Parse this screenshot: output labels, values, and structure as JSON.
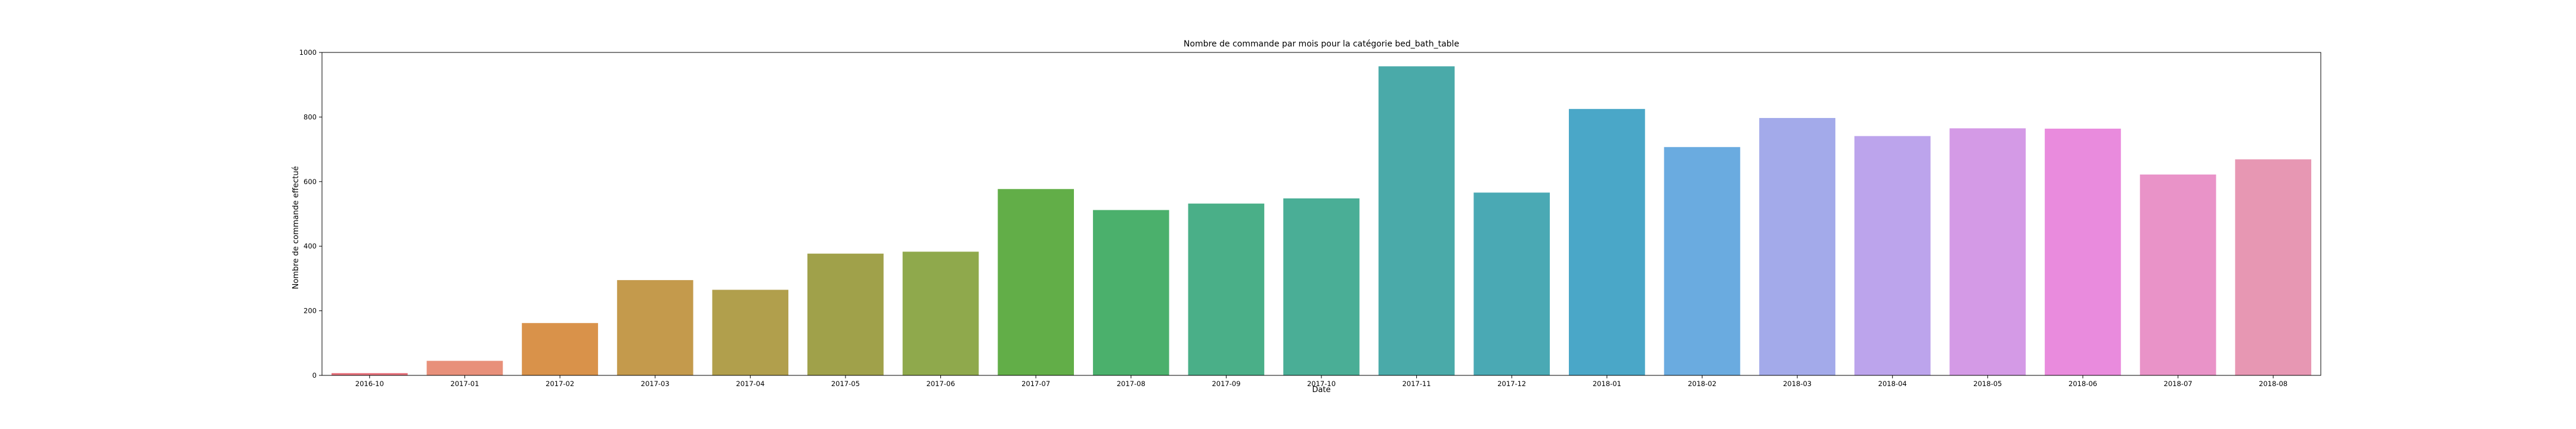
{
  "chart_data": {
    "type": "bar",
    "title": "Nombre de commande par mois pour la catégorie bed_bath_table",
    "xlabel": "Date",
    "ylabel": "Nombre de commande effectué",
    "ylim": [
      0,
      1000
    ],
    "yticks": [
      0,
      200,
      400,
      600,
      800,
      1000
    ],
    "grid": false,
    "legend": "none",
    "categories": [
      "2016-10",
      "2017-01",
      "2017-02",
      "2017-03",
      "2017-04",
      "2017-05",
      "2017-06",
      "2017-07",
      "2017-08",
      "2017-09",
      "2017-10",
      "2017-11",
      "2017-12",
      "2018-01",
      "2018-02",
      "2018-03",
      "2018-04",
      "2018-05",
      "2018-06",
      "2018-07",
      "2018-08"
    ],
    "values": [
      7,
      45,
      162,
      295,
      265,
      377,
      383,
      577,
      512,
      532,
      548,
      957,
      566,
      825,
      707,
      797,
      741,
      765,
      764,
      622,
      669
    ],
    "colors": [
      "#e8737d",
      "#e8907a",
      "#d9924a",
      "#c49a4c",
      "#b19f4c",
      "#a0a14a",
      "#8fa94c",
      "#62ae48",
      "#4bb06c",
      "#4aaf88",
      "#4aae96",
      "#4aaaa9",
      "#4aa9b4",
      "#4aa7c8",
      "#6aabe0",
      "#a3aaea",
      "#bca4ec",
      "#d49ae6",
      "#e98bdd",
      "#e993c8",
      "#e797b3"
    ]
  }
}
